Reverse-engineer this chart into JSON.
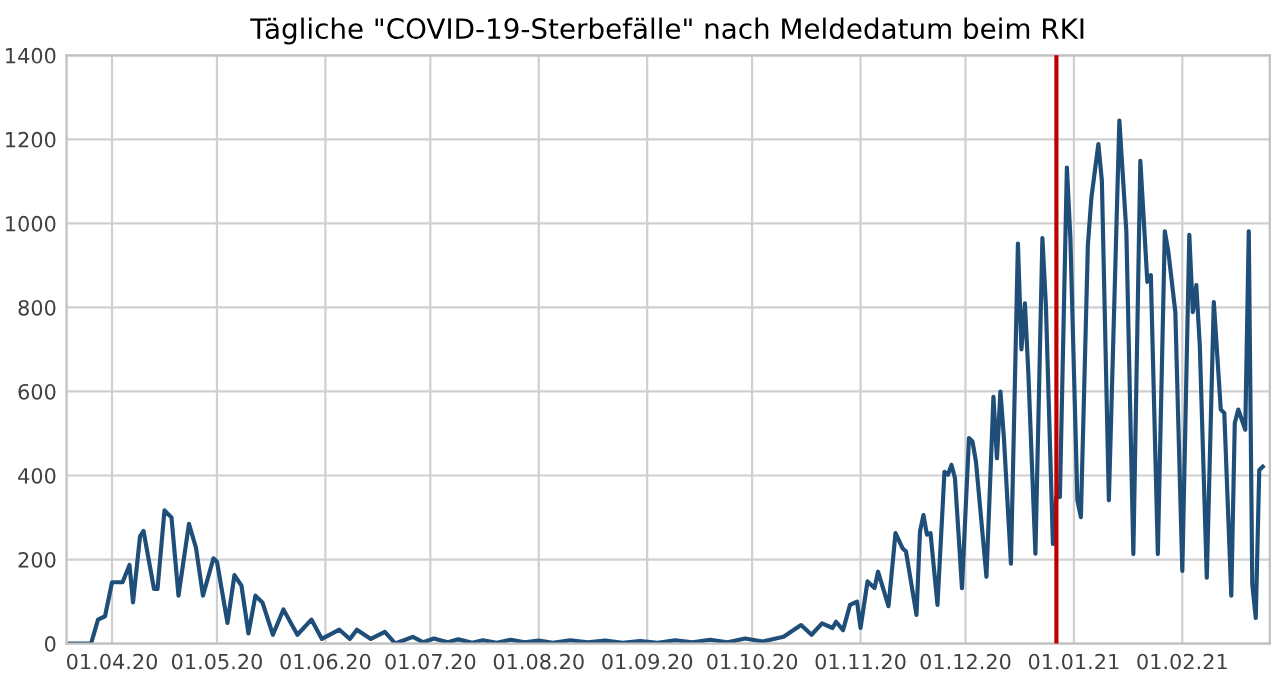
{
  "chart_data": {
    "type": "line",
    "title": "Tägliche \"COVID-19-Sterbefälle\" nach Meldedatum beim RKI",
    "x": [
      "2020-03-20",
      "2020-03-26",
      "2020-03-28",
      "2020-03-30",
      "2020-04-01",
      "2020-04-04",
      "2020-04-06",
      "2020-04-07",
      "2020-04-09",
      "2020-04-10",
      "2020-04-13",
      "2020-04-14",
      "2020-04-16",
      "2020-04-18",
      "2020-04-20",
      "2020-04-23",
      "2020-04-25",
      "2020-04-27",
      "2020-04-30",
      "2020-05-01",
      "2020-05-03",
      "2020-05-04",
      "2020-05-06",
      "2020-05-08",
      "2020-05-10",
      "2020-05-12",
      "2020-05-14",
      "2020-05-17",
      "2020-05-20",
      "2020-05-24",
      "2020-05-28",
      "2020-05-31",
      "2020-06-05",
      "2020-06-08",
      "2020-06-10",
      "2020-06-14",
      "2020-06-18",
      "2020-06-21",
      "2020-06-26",
      "2020-06-29",
      "2020-07-02",
      "2020-07-06",
      "2020-07-09",
      "2020-07-13",
      "2020-07-16",
      "2020-07-20",
      "2020-07-24",
      "2020-07-28",
      "2020-08-01",
      "2020-08-05",
      "2020-08-10",
      "2020-08-15",
      "2020-08-20",
      "2020-08-25",
      "2020-08-30",
      "2020-09-04",
      "2020-09-09",
      "2020-09-14",
      "2020-09-19",
      "2020-09-24",
      "2020-09-29",
      "2020-10-04",
      "2020-10-10",
      "2020-10-15",
      "2020-10-18",
      "2020-10-21",
      "2020-10-24",
      "2020-10-25",
      "2020-10-27",
      "2020-10-29",
      "2020-10-31",
      "2020-11-01",
      "2020-11-03",
      "2020-11-05",
      "2020-11-06",
      "2020-11-09",
      "2020-11-11",
      "2020-11-13",
      "2020-11-14",
      "2020-11-17",
      "2020-11-18",
      "2020-11-19",
      "2020-11-20",
      "2020-11-21",
      "2020-11-23",
      "2020-11-25",
      "2020-11-26",
      "2020-11-27",
      "2020-11-28",
      "2020-11-30",
      "2020-12-02",
      "2020-12-03",
      "2020-12-04",
      "2020-12-07",
      "2020-12-09",
      "2020-12-10",
      "2020-12-11",
      "2020-12-12",
      "2020-12-14",
      "2020-12-16",
      "2020-12-17",
      "2020-12-18",
      "2020-12-19",
      "2020-12-21",
      "2020-12-23",
      "2020-12-24",
      "2020-12-26",
      "2020-12-27",
      "2020-12-28",
      "2020-12-30",
      "2020-12-31",
      "2021-01-02",
      "2021-01-03",
      "2021-01-05",
      "2021-01-06",
      "2021-01-08",
      "2021-01-09",
      "2021-01-11",
      "2021-01-14",
      "2021-01-16",
      "2021-01-18",
      "2021-01-20",
      "2021-01-22",
      "2021-01-23",
      "2021-01-25",
      "2021-01-27",
      "2021-01-28",
      "2021-01-30",
      "2021-02-01",
      "2021-02-03",
      "2021-02-04",
      "2021-02-05",
      "2021-02-06",
      "2021-02-08",
      "2021-02-10",
      "2021-02-12",
      "2021-02-13",
      "2021-02-15",
      "2021-02-16",
      "2021-02-17",
      "2021-02-19",
      "2021-02-20",
      "2021-02-21",
      "2021-02-22",
      "2021-02-23",
      "2021-02-24"
    ],
    "series": [
      {
        "color": "#1f4e79",
        "values": [
          0,
          0,
          57,
          65,
          146,
          146,
          187,
          98,
          255,
          268,
          130,
          130,
          317,
          300,
          114,
          285,
          228,
          114,
          203,
          195,
          98,
          49,
          163,
          138,
          24,
          114,
          98,
          21,
          81,
          21,
          57,
          11,
          33,
          11,
          33,
          11,
          28,
          0,
          16,
          3,
          12,
          3,
          10,
          2,
          8,
          2,
          9,
          3,
          7,
          2,
          8,
          3,
          7,
          2,
          6,
          2,
          8,
          3,
          9,
          3,
          12,
          5,
          16,
          44,
          21,
          48,
          37,
          52,
          32,
          92,
          100,
          37,
          148,
          132,
          171,
          89,
          263,
          227,
          219,
          68,
          267,
          306,
          259,
          263,
          92,
          409,
          402,
          425,
          394,
          132,
          489,
          481,
          433,
          159,
          587,
          441,
          600,
          489,
          190,
          952,
          700,
          810,
          640,
          214,
          965,
          805,
          237,
          349,
          349,
          1133,
          965,
          341,
          301,
          949,
          1061,
          1189,
          1101,
          341,
          1245,
          981,
          213,
          1149,
          861,
          877,
          213,
          981,
          933,
          789,
          173,
          973,
          789,
          853,
          709,
          157,
          813,
          557,
          549,
          114,
          525,
          557,
          509,
          981,
          141,
          61,
          413,
          421
        ]
      }
    ],
    "xlim": [
      "2020-03-19",
      "2021-02-26"
    ],
    "xticks": [
      {
        "value": "2020-04-01",
        "label": "01.04.20"
      },
      {
        "value": "2020-05-01",
        "label": "01.05.20"
      },
      {
        "value": "2020-06-01",
        "label": "01.06.20"
      },
      {
        "value": "2020-07-01",
        "label": "01.07.20"
      },
      {
        "value": "2020-08-01",
        "label": "01.08.20"
      },
      {
        "value": "2020-09-01",
        "label": "01.09.20"
      },
      {
        "value": "2020-10-01",
        "label": "01.10.20"
      },
      {
        "value": "2020-11-01",
        "label": "01.11.20"
      },
      {
        "value": "2020-12-01",
        "label": "01.12.20"
      },
      {
        "value": "2021-01-01",
        "label": "01.01.21"
      },
      {
        "value": "2021-02-01",
        "label": "01.02.21"
      }
    ],
    "ylim": [
      0,
      1400
    ],
    "yticks": [
      0,
      200,
      400,
      600,
      800,
      1000,
      1200,
      1400
    ],
    "grid": true,
    "marker": "none",
    "line_style": "solid",
    "legend": false,
    "ref_lines": [
      {
        "axis": "x",
        "value": "2020-12-27",
        "color": "#c00000",
        "line_style": "solid"
      }
    ]
  }
}
